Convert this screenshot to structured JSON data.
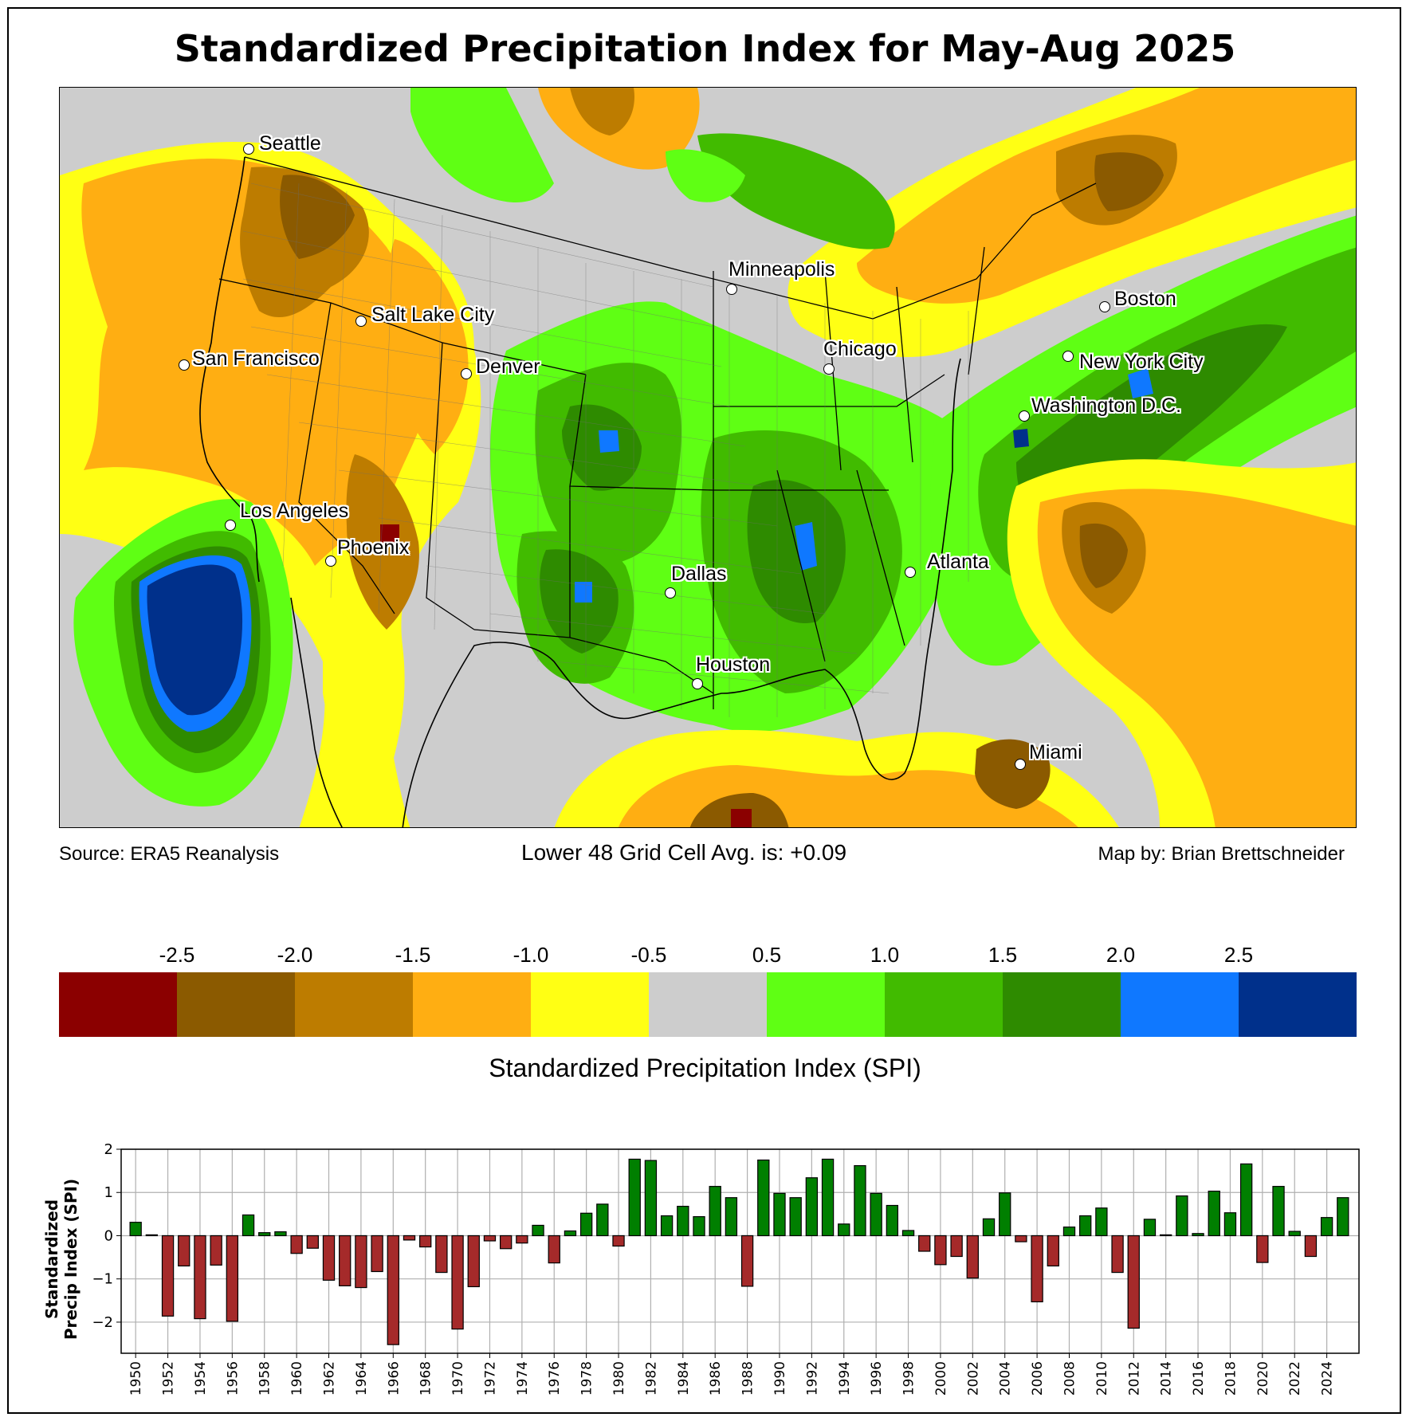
{
  "title": "Standardized Precipitation Index for May-Aug 2025",
  "map": {
    "cities": [
      {
        "name": "Seattle"
      },
      {
        "name": "San Francisco"
      },
      {
        "name": "Salt Lake City"
      },
      {
        "name": "Denver"
      },
      {
        "name": "Los Angeles"
      },
      {
        "name": "Phoenix"
      },
      {
        "name": "Minneapolis"
      },
      {
        "name": "Chicago"
      },
      {
        "name": "Boston"
      },
      {
        "name": "New York City"
      },
      {
        "name": "Washington D.C."
      },
      {
        "name": "Dallas"
      },
      {
        "name": "Houston"
      },
      {
        "name": "Atlanta"
      },
      {
        "name": "Miami"
      }
    ]
  },
  "footer": {
    "source": "Source: ERA5 Reanalysis",
    "average": "Lower 48 Grid Cell Avg. is: +0.09",
    "credit": "Map by: Brian Brettschneider"
  },
  "colorbar": {
    "label": "Standardized Precipitation Index (SPI)",
    "ticks": [
      "-2.5",
      "-2.0",
      "-1.5",
      "-1.0",
      "-0.5",
      "0.5",
      "1.0",
      "1.5",
      "2.0",
      "2.5"
    ],
    "colors": [
      "#8b0000",
      "#8b5a00",
      "#bd7c00",
      "#ffae12",
      "#ffff14",
      "#cdcdcd",
      "#5fff14",
      "#41bb00",
      "#2e8b00",
      "#0f78ff",
      "#00308b"
    ]
  },
  "chart_data": {
    "type": "bar",
    "title": "",
    "xlabel": "",
    "ylabel": "Standardized\nPrecip Index (SPI)",
    "ylabel_lines": [
      "Standardized",
      "Precip Index (SPI)"
    ],
    "ylim": [
      -2.72,
      2.0
    ],
    "xlim": [
      1949.1,
      2026.0
    ],
    "grid": true,
    "y_ticks": [
      2,
      1,
      0,
      -1,
      -2
    ],
    "y_tick_labels": [
      "2",
      "1",
      "0",
      "−1",
      "−2"
    ],
    "x_tick_labels": [
      "1950",
      "1952",
      "1954",
      "1956",
      "1958",
      "1960",
      "1962",
      "1964",
      "1966",
      "1968",
      "1970",
      "1972",
      "1974",
      "1976",
      "1978",
      "1980",
      "1982",
      "1984",
      "1986",
      "1988",
      "1990",
      "1992",
      "1994",
      "1996",
      "1998",
      "2000",
      "2002",
      "2004",
      "2006",
      "2008",
      "2010",
      "2012",
      "2014",
      "2016",
      "2018",
      "2020",
      "2022",
      "2024"
    ],
    "positive_color": "#007f00",
    "negative_color": "#a52a2a",
    "years": [
      1950,
      1951,
      1952,
      1953,
      1954,
      1955,
      1956,
      1957,
      1958,
      1959,
      1960,
      1961,
      1962,
      1963,
      1964,
      1965,
      1966,
      1967,
      1968,
      1969,
      1970,
      1971,
      1972,
      1973,
      1974,
      1975,
      1976,
      1977,
      1978,
      1979,
      1980,
      1981,
      1982,
      1983,
      1984,
      1985,
      1986,
      1987,
      1988,
      1989,
      1990,
      1991,
      1992,
      1993,
      1994,
      1995,
      1996,
      1997,
      1998,
      1999,
      2000,
      2001,
      2002,
      2003,
      2004,
      2005,
      2006,
      2007,
      2008,
      2009,
      2010,
      2011,
      2012,
      2013,
      2014,
      2015,
      2016,
      2017,
      2018,
      2019,
      2020,
      2021,
      2022,
      2023,
      2024,
      2025
    ],
    "values": [
      0.31,
      0.02,
      -1.86,
      -0.7,
      -1.92,
      -0.68,
      -1.98,
      0.48,
      0.07,
      0.09,
      -0.41,
      -0.29,
      -1.03,
      -1.16,
      -1.2,
      -0.83,
      -2.52,
      -0.1,
      -0.26,
      -0.85,
      -2.16,
      -1.18,
      -0.12,
      -0.3,
      -0.17,
      0.24,
      -0.63,
      0.11,
      0.52,
      0.73,
      -0.24,
      1.77,
      1.74,
      0.46,
      0.68,
      0.44,
      1.14,
      0.88,
      -1.17,
      1.75,
      0.98,
      0.88,
      1.34,
      1.77,
      0.27,
      1.62,
      0.98,
      0.7,
      0.12,
      -0.36,
      -0.67,
      -0.48,
      -0.98,
      0.39,
      0.99,
      -0.14,
      -1.53,
      -0.7,
      0.2,
      0.46,
      0.64,
      -0.85,
      -2.14,
      0.38,
      0.02,
      0.92,
      0.05,
      1.03,
      0.53,
      1.66,
      -0.62,
      1.14,
      0.1,
      -0.48,
      0.42,
      0.88
    ]
  }
}
